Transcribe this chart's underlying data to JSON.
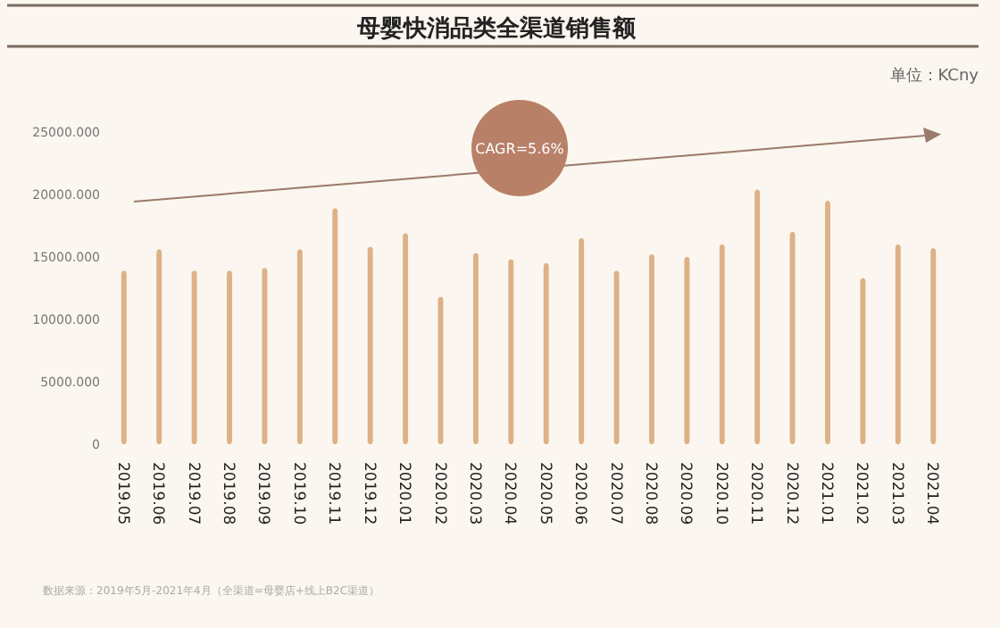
{
  "chart_data": {
    "type": "bar",
    "title": "母婴快消品类全渠道销售额",
    "annotations": [
      "单位：KCny",
      "CAGR=5.6%",
      "数据来源：2019年5月-2021年4月（全渠道=母婴店+线上B2C渠道）"
    ],
    "categories": [
      "2019.05",
      "2019.06",
      "2019.07",
      "2019.08",
      "2019.09",
      "2019.10",
      "2019.11",
      "2019.12",
      "2020.01",
      "2020.02",
      "2020.03",
      "2020.04",
      "2020.05",
      "2020.06",
      "2020.07",
      "2020.08",
      "2020.09",
      "2020.10",
      "2020.11",
      "2020.12",
      "2021.01",
      "2021.02",
      "2021.03",
      "2021.04"
    ],
    "values": [
      13900,
      15600,
      13900,
      13900,
      14100,
      15600,
      18900,
      15800,
      16900,
      11800,
      15300,
      14800,
      14500,
      16500,
      13900,
      15200,
      15000,
      16000,
      20400,
      17000,
      19500,
      13300,
      16000,
      15700
    ],
    "color": "#deb186",
    "ylim": [
      0,
      25000
    ],
    "yticks": [
      0,
      {
        "value": 5000,
        "label": "5000.000"
      },
      {
        "value": 10000,
        "label": "10000.000"
      },
      {
        "value": 15000,
        "label": "15000.000"
      },
      {
        "value": 20000,
        "label": "20000.000"
      },
      {
        "value": 25000,
        "label": "25000.000"
      }
    ],
    "grid": false
  }
}
